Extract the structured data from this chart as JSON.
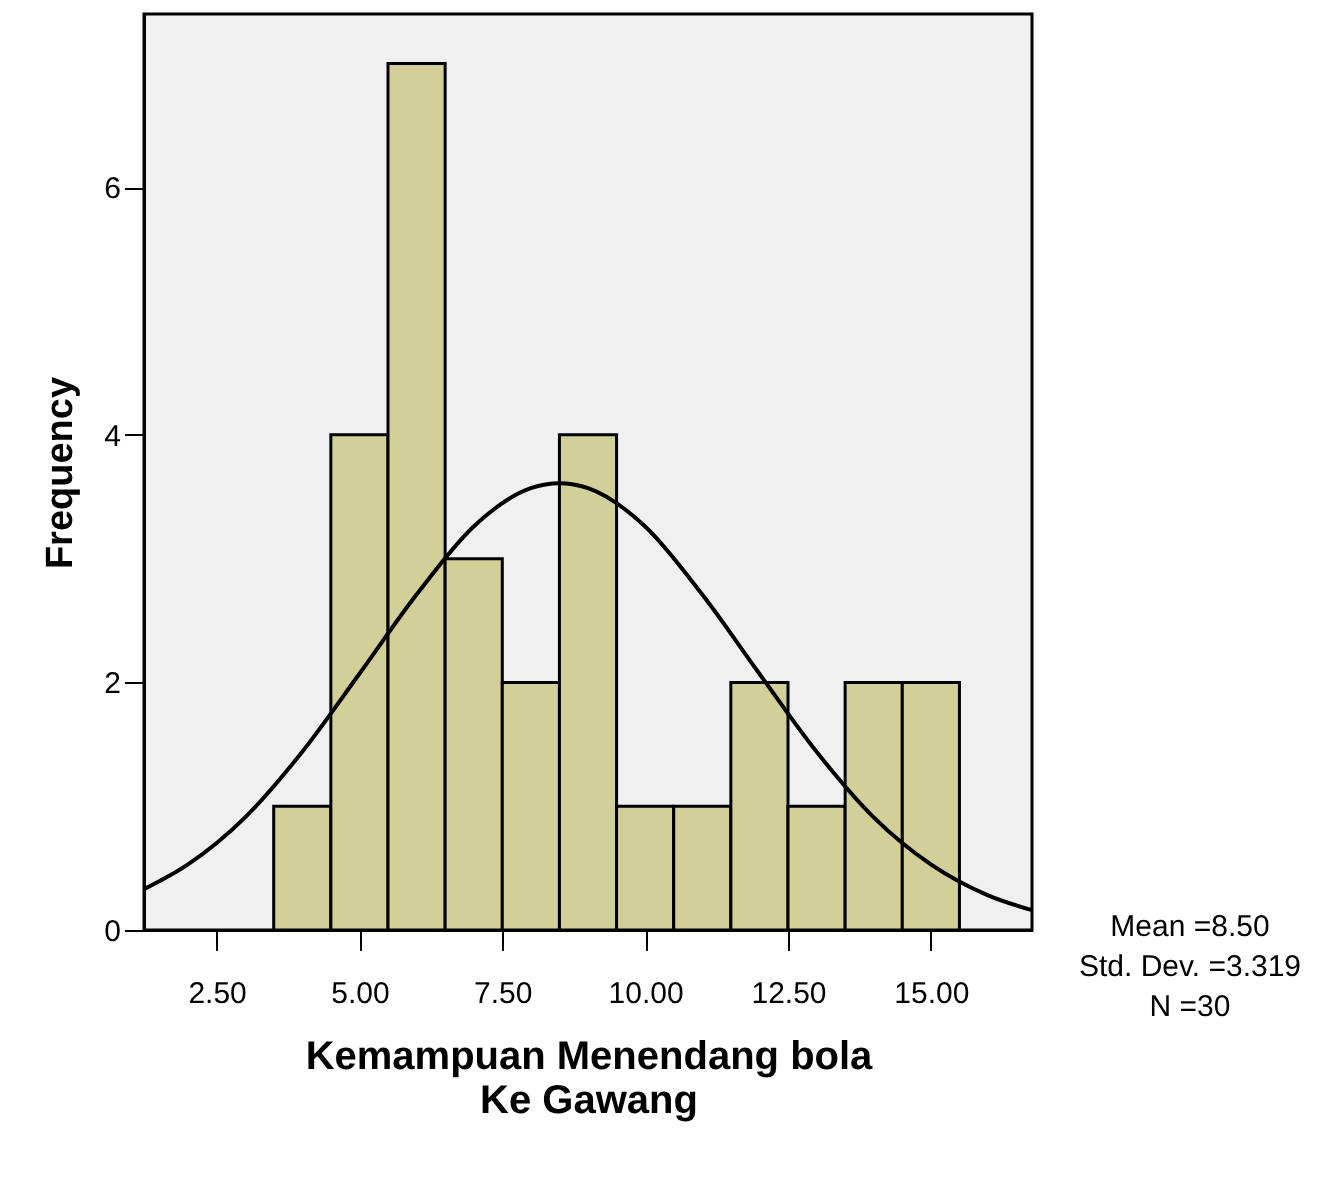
{
  "chart_data": {
    "type": "histogram",
    "xlabel": "Kemampuan Menendang bola Ke Gawang",
    "ylabel": "Frequency",
    "bins": [
      3.5,
      4.5,
      5.5,
      6.5,
      7.5,
      8.5,
      9.5,
      10.5,
      11.5,
      12.5,
      13.5,
      14.5,
      15.5
    ],
    "values": [
      1,
      4,
      7,
      3,
      2,
      4,
      1,
      1,
      2,
      1,
      2,
      2
    ],
    "color": "#d3cf99",
    "series": [
      {
        "type": "line",
        "color": "#000000",
        "x": [
          1.23,
          2,
          3,
          4,
          5,
          6,
          7,
          8,
          8.5,
          9,
          10,
          11,
          12,
          13,
          14,
          15,
          16,
          16.77
        ],
        "values": [
          0.33,
          0.53,
          0.91,
          1.44,
          2.07,
          2.71,
          3.26,
          3.57,
          3.61,
          3.57,
          3.26,
          2.71,
          2.07,
          1.44,
          0.91,
          0.53,
          0.28,
          0.16
        ]
      }
    ],
    "xlim": [
      1.23,
      16.77
    ],
    "ylim": [
      0,
      7.4
    ],
    "xticks": [
      {
        "value": 2.5,
        "label": "2.50"
      },
      {
        "value": 5,
        "label": "5.00"
      },
      {
        "value": 7.5,
        "label": "7.50"
      },
      {
        "value": 10,
        "label": "10.00"
      },
      {
        "value": 12.5,
        "label": "12.50"
      },
      {
        "value": 15,
        "label": "15.00"
      }
    ],
    "yticks": [
      0,
      2,
      4,
      6
    ],
    "grid": false,
    "annotations": [
      "Mean =8.50",
      "Std. Dev. =3.319",
      "N =30"
    ]
  }
}
